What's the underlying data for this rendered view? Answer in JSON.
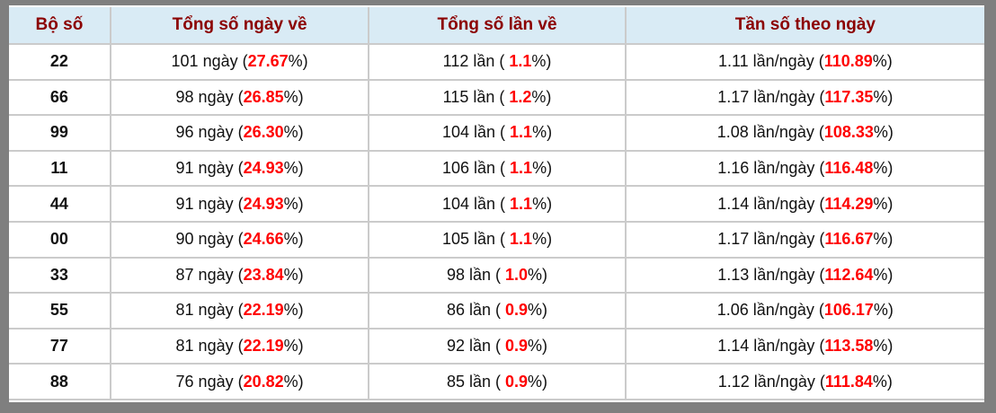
{
  "colors": {
    "frame": "#7f7f7f",
    "header_background": "#d9ebf5",
    "header_text": "#8b0000",
    "cell_border": "#cbcbcb",
    "highlight_red": "#ff0000",
    "body_text": "#111111"
  },
  "table": {
    "headers": [
      "Bộ số",
      "Tổng số ngày về",
      "Tổng số lần về",
      "Tần số theo ngày"
    ],
    "rows": [
      {
        "num": "22",
        "col2": [
          "101 ngày (",
          "27.67",
          "%)"
        ],
        "col3": [
          "112 lần ( ",
          "1.1",
          "%)"
        ],
        "col4": [
          "1.11 lần/ngày (",
          "110.89",
          "%)"
        ]
      },
      {
        "num": "66",
        "col2": [
          "98 ngày (",
          "26.85",
          "%)"
        ],
        "col3": [
          "115 lần ( ",
          "1.2",
          "%)"
        ],
        "col4": [
          "1.17 lần/ngày (",
          "117.35",
          "%)"
        ]
      },
      {
        "num": "99",
        "col2": [
          "96 ngày (",
          "26.30",
          "%)"
        ],
        "col3": [
          "104 lần ( ",
          "1.1",
          "%)"
        ],
        "col4": [
          "1.08 lần/ngày (",
          "108.33",
          "%)"
        ]
      },
      {
        "num": "11",
        "col2": [
          "91 ngày (",
          "24.93",
          "%)"
        ],
        "col3": [
          "106 lần ( ",
          "1.1",
          "%)"
        ],
        "col4": [
          "1.16 lần/ngày (",
          "116.48",
          "%)"
        ]
      },
      {
        "num": "44",
        "col2": [
          "91 ngày (",
          "24.93",
          "%)"
        ],
        "col3": [
          "104 lần ( ",
          "1.1",
          "%)"
        ],
        "col4": [
          "1.14 lần/ngày (",
          "114.29",
          "%)"
        ]
      },
      {
        "num": "00",
        "col2": [
          "90 ngày (",
          "24.66",
          "%)"
        ],
        "col3": [
          "105 lần ( ",
          "1.1",
          "%)"
        ],
        "col4": [
          "1.17 lần/ngày (",
          "116.67",
          "%)"
        ]
      },
      {
        "num": "33",
        "col2": [
          "87 ngày (",
          "23.84",
          "%)"
        ],
        "col3": [
          "98 lần ( ",
          "1.0",
          "%)"
        ],
        "col4": [
          "1.13 lần/ngày (",
          "112.64",
          "%)"
        ]
      },
      {
        "num": "55",
        "col2": [
          "81 ngày (",
          "22.19",
          "%)"
        ],
        "col3": [
          "86 lần ( ",
          "0.9",
          "%)"
        ],
        "col4": [
          "1.06 lần/ngày (",
          "106.17",
          "%)"
        ]
      },
      {
        "num": "77",
        "col2": [
          "81 ngày (",
          "22.19",
          "%)"
        ],
        "col3": [
          "92 lần ( ",
          "0.9",
          "%)"
        ],
        "col4": [
          "1.14 lần/ngày (",
          "113.58",
          "%)"
        ]
      },
      {
        "num": "88",
        "col2": [
          "76 ngày (",
          "20.82",
          "%)"
        ],
        "col3": [
          "85 lần ( ",
          "0.9",
          "%)"
        ],
        "col4": [
          "1.12 lần/ngày (",
          "111.84",
          "%)"
        ]
      }
    ]
  }
}
